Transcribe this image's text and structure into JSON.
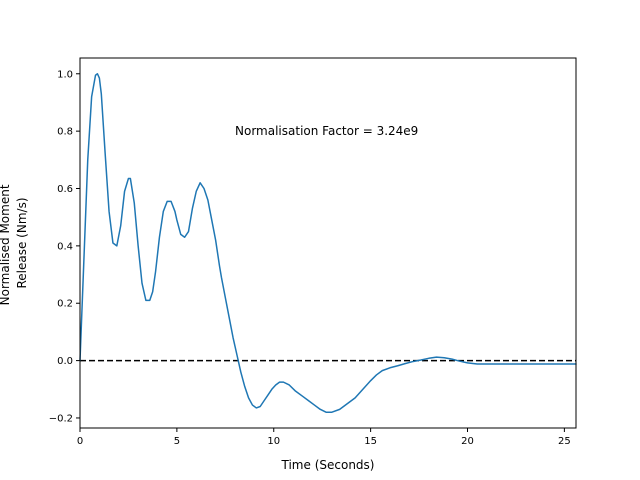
{
  "chart_data": {
    "type": "line",
    "title": "",
    "xlabel": "Time (Seconds)",
    "ylabel_lines": [
      "Normalised Moment",
      "Release (Nm/s)"
    ],
    "xlim": [
      0,
      25.6
    ],
    "ylim": [
      -0.235,
      1.055
    ],
    "xticks": [
      0,
      5,
      10,
      15,
      20,
      25
    ],
    "yticks": [
      -0.2,
      0.0,
      0.2,
      0.4,
      0.6,
      0.8,
      1.0
    ],
    "ytick_labels": [
      "−0.2",
      "0.0",
      "0.2",
      "0.4",
      "0.6",
      "0.8",
      "1.0"
    ],
    "grid": false,
    "annotation": {
      "text": "Normalisation Factor = 3.24e9",
      "x": 8.0,
      "y": 0.8
    },
    "reference_line": {
      "y": 0.0,
      "style": "dashed",
      "color": "#000000"
    },
    "series": [
      {
        "color": "#1f77b4",
        "x": [
          0,
          0.2,
          0.4,
          0.6,
          0.8,
          0.9,
          1.0,
          1.1,
          1.3,
          1.5,
          1.7,
          1.9,
          2.1,
          2.3,
          2.5,
          2.6,
          2.8,
          3.0,
          3.2,
          3.4,
          3.6,
          3.75,
          3.9,
          4.1,
          4.3,
          4.5,
          4.7,
          4.9,
          5.0,
          5.2,
          5.4,
          5.6,
          5.8,
          6.0,
          6.2,
          6.4,
          6.6,
          6.8,
          7.0,
          7.2,
          7.3,
          7.5,
          7.7,
          7.9,
          8.1,
          8.3,
          8.5,
          8.7,
          8.9,
          9.1,
          9.3,
          9.5,
          9.7,
          9.9,
          10.1,
          10.3,
          10.5,
          10.8,
          11.1,
          11.5,
          11.8,
          12.1,
          12.4,
          12.7,
          13.0,
          13.4,
          13.8,
          14.2,
          14.6,
          15.0,
          15.3,
          15.6,
          16.0,
          16.4,
          16.8,
          17.2,
          17.6,
          18.0,
          18.4,
          18.8,
          19.2,
          19.6,
          20.0,
          20.5,
          21.0,
          21.5,
          22.0,
          22.5,
          23.0,
          23.5,
          24.0,
          24.5,
          25.0,
          25.6
        ],
        "y": [
          0.0,
          0.35,
          0.7,
          0.92,
          0.995,
          1.0,
          0.985,
          0.93,
          0.72,
          0.52,
          0.41,
          0.4,
          0.47,
          0.59,
          0.635,
          0.635,
          0.55,
          0.4,
          0.27,
          0.21,
          0.21,
          0.24,
          0.31,
          0.43,
          0.52,
          0.555,
          0.555,
          0.52,
          0.49,
          0.44,
          0.43,
          0.45,
          0.53,
          0.59,
          0.62,
          0.6,
          0.56,
          0.49,
          0.42,
          0.33,
          0.29,
          0.22,
          0.15,
          0.08,
          0.02,
          -0.04,
          -0.09,
          -0.13,
          -0.155,
          -0.165,
          -0.16,
          -0.14,
          -0.12,
          -0.1,
          -0.085,
          -0.075,
          -0.075,
          -0.085,
          -0.105,
          -0.125,
          -0.14,
          -0.155,
          -0.17,
          -0.18,
          -0.18,
          -0.17,
          -0.15,
          -0.13,
          -0.1,
          -0.07,
          -0.05,
          -0.035,
          -0.025,
          -0.018,
          -0.01,
          -0.003,
          0.002,
          0.008,
          0.012,
          0.01,
          0.005,
          -0.002,
          -0.008,
          -0.012,
          -0.012,
          -0.012,
          -0.012,
          -0.012,
          -0.012,
          -0.012,
          -0.012,
          -0.012,
          -0.012,
          -0.012
        ]
      }
    ]
  }
}
